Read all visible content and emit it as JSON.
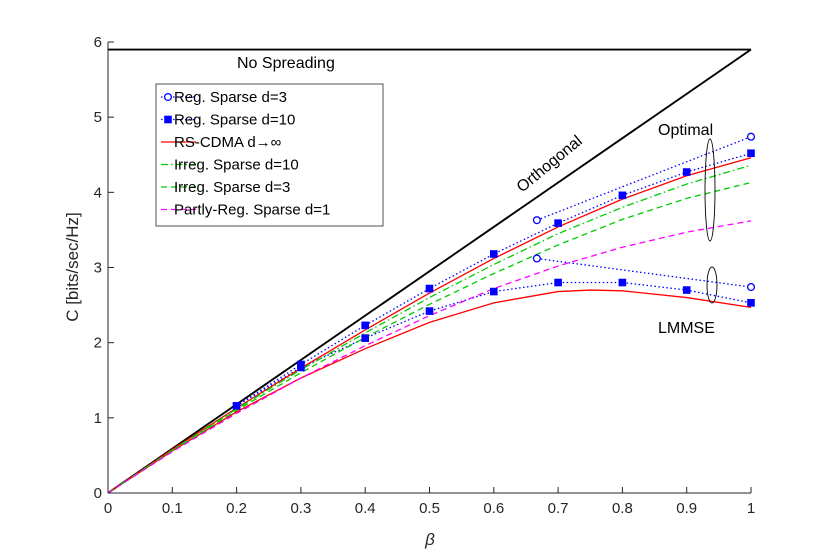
{
  "chart_data": {
    "type": "line",
    "title": "",
    "xlabel": "β",
    "ylabel": "C [bits/sec/Hz]",
    "xlim": [
      0,
      1
    ],
    "ylim": [
      0,
      6
    ],
    "xticks": [
      "0",
      "0.1",
      "0.2",
      "0.3",
      "0.4",
      "0.5",
      "0.6",
      "0.7",
      "0.8",
      "0.9",
      "1"
    ],
    "yticks": [
      "0",
      "1",
      "2",
      "3",
      "4",
      "5",
      "6"
    ],
    "grid": false,
    "legend_position": "top-left",
    "legend": [
      {
        "label": "Reg. Sparse d=3",
        "color": "#0000ff",
        "dash": "dotted",
        "marker": "circle"
      },
      {
        "label": "Reg. Sparse d=10",
        "color": "#0000ff",
        "dash": "dotted",
        "marker": "square"
      },
      {
        "label": "RS-CDMA d→∞",
        "color": "#ff0000",
        "dash": "solid",
        "marker": "none"
      },
      {
        "label": "Irreg. Sparse d=10",
        "color": "#00cc00",
        "dash": "dashdot",
        "marker": "none"
      },
      {
        "label": "Irreg. Sparse d=3",
        "color": "#00cc00",
        "dash": "dashed",
        "marker": "none"
      },
      {
        "label": "Partly-Reg. Sparse d=1",
        "color": "#ff00ff",
        "dash": "dashed",
        "marker": "none"
      }
    ],
    "series": [
      {
        "name": "No Spreading",
        "color": "#000000",
        "dash": "solid",
        "marker": "none",
        "x": [
          0,
          1
        ],
        "y": [
          5.9,
          5.9
        ]
      },
      {
        "name": "Orthogonal",
        "color": "#000000",
        "dash": "solid",
        "marker": "none",
        "x": [
          0,
          1
        ],
        "y": [
          0,
          5.9
        ]
      },
      {
        "name": "Reg. Sparse d=3 (Optimal)",
        "color": "#0000ff",
        "dash": "dotted",
        "marker": "circle",
        "x": [
          0.667,
          1
        ],
        "y": [
          3.63,
          4.74
        ]
      },
      {
        "name": "Reg. Sparse d=3 (LMMSE)",
        "color": "#0000ff",
        "dash": "dotted",
        "marker": "circle",
        "x": [
          0.667,
          1
        ],
        "y": [
          3.12,
          2.74
        ]
      },
      {
        "name": "Reg. Sparse d=10 (Optimal)",
        "color": "#0000ff",
        "dash": "dotted",
        "marker": "square",
        "x": [
          0.2,
          0.3,
          0.4,
          0.5,
          0.6,
          0.7,
          0.8,
          0.9,
          1
        ],
        "y": [
          1.16,
          1.71,
          2.23,
          2.72,
          3.18,
          3.59,
          3.96,
          4.27,
          4.52
        ]
      },
      {
        "name": "Reg. Sparse d=10 (LMMSE)",
        "color": "#0000ff",
        "dash": "dotted",
        "marker": "square",
        "x": [
          0.2,
          0.3,
          0.4,
          0.5,
          0.6,
          0.7,
          0.8,
          0.9,
          1
        ],
        "y": [
          1.16,
          1.67,
          2.06,
          2.42,
          2.68,
          2.8,
          2.8,
          2.7,
          2.53
        ]
      },
      {
        "name": "RS-CDMA d→∞ (Optimal)",
        "color": "#ff0000",
        "dash": "solid",
        "marker": "none",
        "x": [
          0,
          0.1,
          0.2,
          0.3,
          0.4,
          0.5,
          0.6,
          0.7,
          0.8,
          0.9,
          1
        ],
        "y": [
          0,
          0.58,
          1.13,
          1.66,
          2.17,
          2.66,
          3.12,
          3.54,
          3.91,
          4.22,
          4.46
        ]
      },
      {
        "name": "RS-CDMA d→∞ (LMMSE)",
        "color": "#ff0000",
        "dash": "solid",
        "marker": "none",
        "x": [
          0,
          0.1,
          0.2,
          0.3,
          0.4,
          0.5,
          0.6,
          0.7,
          0.75,
          0.8,
          0.9,
          1
        ],
        "y": [
          0,
          0.56,
          1.08,
          1.53,
          1.92,
          2.27,
          2.53,
          2.68,
          2.7,
          2.69,
          2.6,
          2.47
        ]
      },
      {
        "name": "Irreg. Sparse d=10",
        "color": "#00cc00",
        "dash": "dashdot",
        "marker": "none",
        "x": [
          0,
          0.1,
          0.2,
          0.3,
          0.4,
          0.5,
          0.6,
          0.7,
          0.8,
          0.9,
          1
        ],
        "y": [
          0,
          0.57,
          1.12,
          1.64,
          2.13,
          2.6,
          3.04,
          3.45,
          3.8,
          4.11,
          4.36
        ]
      },
      {
        "name": "Irreg. Sparse d=3",
        "color": "#00cc00",
        "dash": "dashed",
        "marker": "none",
        "x": [
          0,
          0.1,
          0.2,
          0.3,
          0.4,
          0.5,
          0.6,
          0.7,
          0.8,
          0.9,
          1
        ],
        "y": [
          0,
          0.56,
          1.1,
          1.6,
          2.07,
          2.51,
          2.92,
          3.3,
          3.64,
          3.92,
          4.13
        ]
      },
      {
        "name": "Partly-Reg. Sparse d=1",
        "color": "#ff00ff",
        "dash": "dashed",
        "marker": "none",
        "x": [
          0,
          0.1,
          0.2,
          0.3,
          0.4,
          0.5,
          0.6,
          0.7,
          0.8,
          0.9,
          1
        ],
        "y": [
          0,
          0.55,
          1.06,
          1.53,
          1.96,
          2.36,
          2.72,
          3.02,
          3.27,
          3.47,
          3.62
        ]
      }
    ],
    "annotations": [
      {
        "text": "No Spreading",
        "x": 0.29,
        "y": 5.78
      },
      {
        "text": "Orthogonal",
        "x": 0.68,
        "y": 4.0,
        "rotation": "along line"
      },
      {
        "text": "Optimal",
        "x": 0.92,
        "y": 4.78
      },
      {
        "text": "LMMSE",
        "x": 0.87,
        "y": 2.1
      }
    ]
  }
}
